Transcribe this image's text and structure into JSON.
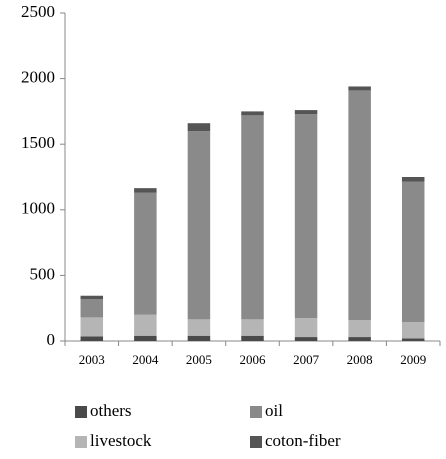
{
  "chart_data": {
    "type": "stacked-bar",
    "categories": [
      "2003",
      "2004",
      "2005",
      "2006",
      "2007",
      "2008",
      "2009"
    ],
    "series": [
      {
        "name": "others",
        "color": "#4a4a4a",
        "values": [
          35,
          40,
          40,
          40,
          30,
          30,
          20
        ]
      },
      {
        "name": "livestock",
        "color": "#b5b5b5",
        "values": [
          145,
          160,
          125,
          125,
          145,
          130,
          125
        ]
      },
      {
        "name": "oil",
        "color": "#8a8a8a",
        "values": [
          140,
          930,
          1435,
          1555,
          1555,
          1750,
          1070
        ]
      },
      {
        "name": "coton-fiber",
        "color": "#555555",
        "values": [
          25,
          35,
          60,
          30,
          30,
          30,
          35
        ]
      }
    ],
    "ylim": [
      0,
      2500
    ],
    "yticks": [
      0,
      500,
      1000,
      1500,
      2000,
      2500
    ]
  }
}
